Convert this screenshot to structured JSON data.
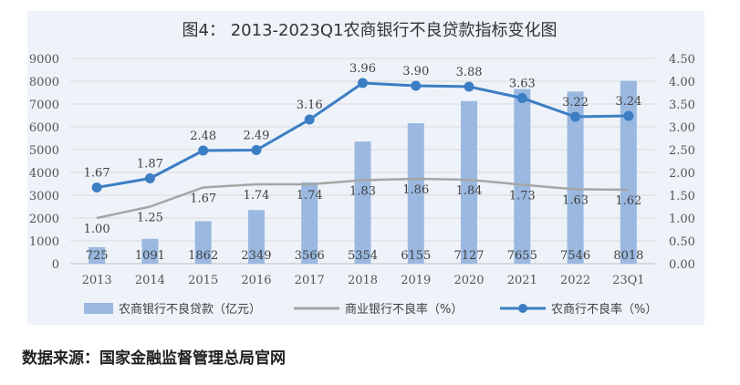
{
  "source_note": "数据来源：国家金融监督管理总局官网",
  "chart_data": {
    "type": "bar",
    "title": "图4： 2013-2023Q1农商银行不良贷款指标变化图",
    "categories": [
      "2013",
      "2014",
      "2015",
      "2016",
      "2017",
      "2018",
      "2019",
      "2020",
      "2021",
      "2022",
      "23Q1"
    ],
    "y_left": {
      "lim": [
        0,
        9000
      ],
      "ticks": [
        "0",
        "1000",
        "2000",
        "3000",
        "4000",
        "5000",
        "6000",
        "7000",
        "8000",
        "9000"
      ]
    },
    "y_right": {
      "lim": [
        0,
        4.5
      ],
      "ticks": [
        "0.00",
        "0.50",
        "1.00",
        "1.50",
        "2.00",
        "2.50",
        "3.00",
        "3.50",
        "4.00",
        "4.50"
      ]
    },
    "grid": true,
    "legend_position": "bottom",
    "series": [
      {
        "name": "农商银行不良贷款（亿元）",
        "type": "bar",
        "axis": "left",
        "color": "#9ab8e0",
        "values": [
          725,
          1091,
          1862,
          2349,
          3566,
          5354,
          6155,
          7127,
          7655,
          7546,
          8018
        ],
        "labels": [
          "725",
          "1091",
          "1862",
          "2349",
          "3566",
          "5354",
          "6155",
          "7127",
          "7655",
          "7546",
          "8018"
        ]
      },
      {
        "name": "商业银行不良率（%）",
        "type": "line",
        "axis": "right",
        "color": "#a6a6a6",
        "values": [
          1.0,
          1.25,
          1.67,
          1.74,
          1.74,
          1.83,
          1.86,
          1.84,
          1.73,
          1.63,
          1.62
        ],
        "labels": [
          "1.00",
          "1.25",
          "1.67",
          "1.74",
          "1.74",
          "1.83",
          "1.86",
          "1.84",
          "1.73",
          "1.63",
          "1.62"
        ]
      },
      {
        "name": "农商行不良率（%）",
        "type": "line-marker",
        "axis": "right",
        "color": "#3c7ec4",
        "values": [
          1.67,
          1.87,
          2.48,
          2.49,
          3.16,
          3.96,
          3.9,
          3.88,
          3.63,
          3.22,
          3.24
        ],
        "labels": [
          "1.67",
          "1.87",
          "2.48",
          "2.49",
          "3.16",
          "3.96",
          "3.90",
          "3.88",
          "3.63",
          "3.22",
          "3.24"
        ]
      }
    ]
  }
}
